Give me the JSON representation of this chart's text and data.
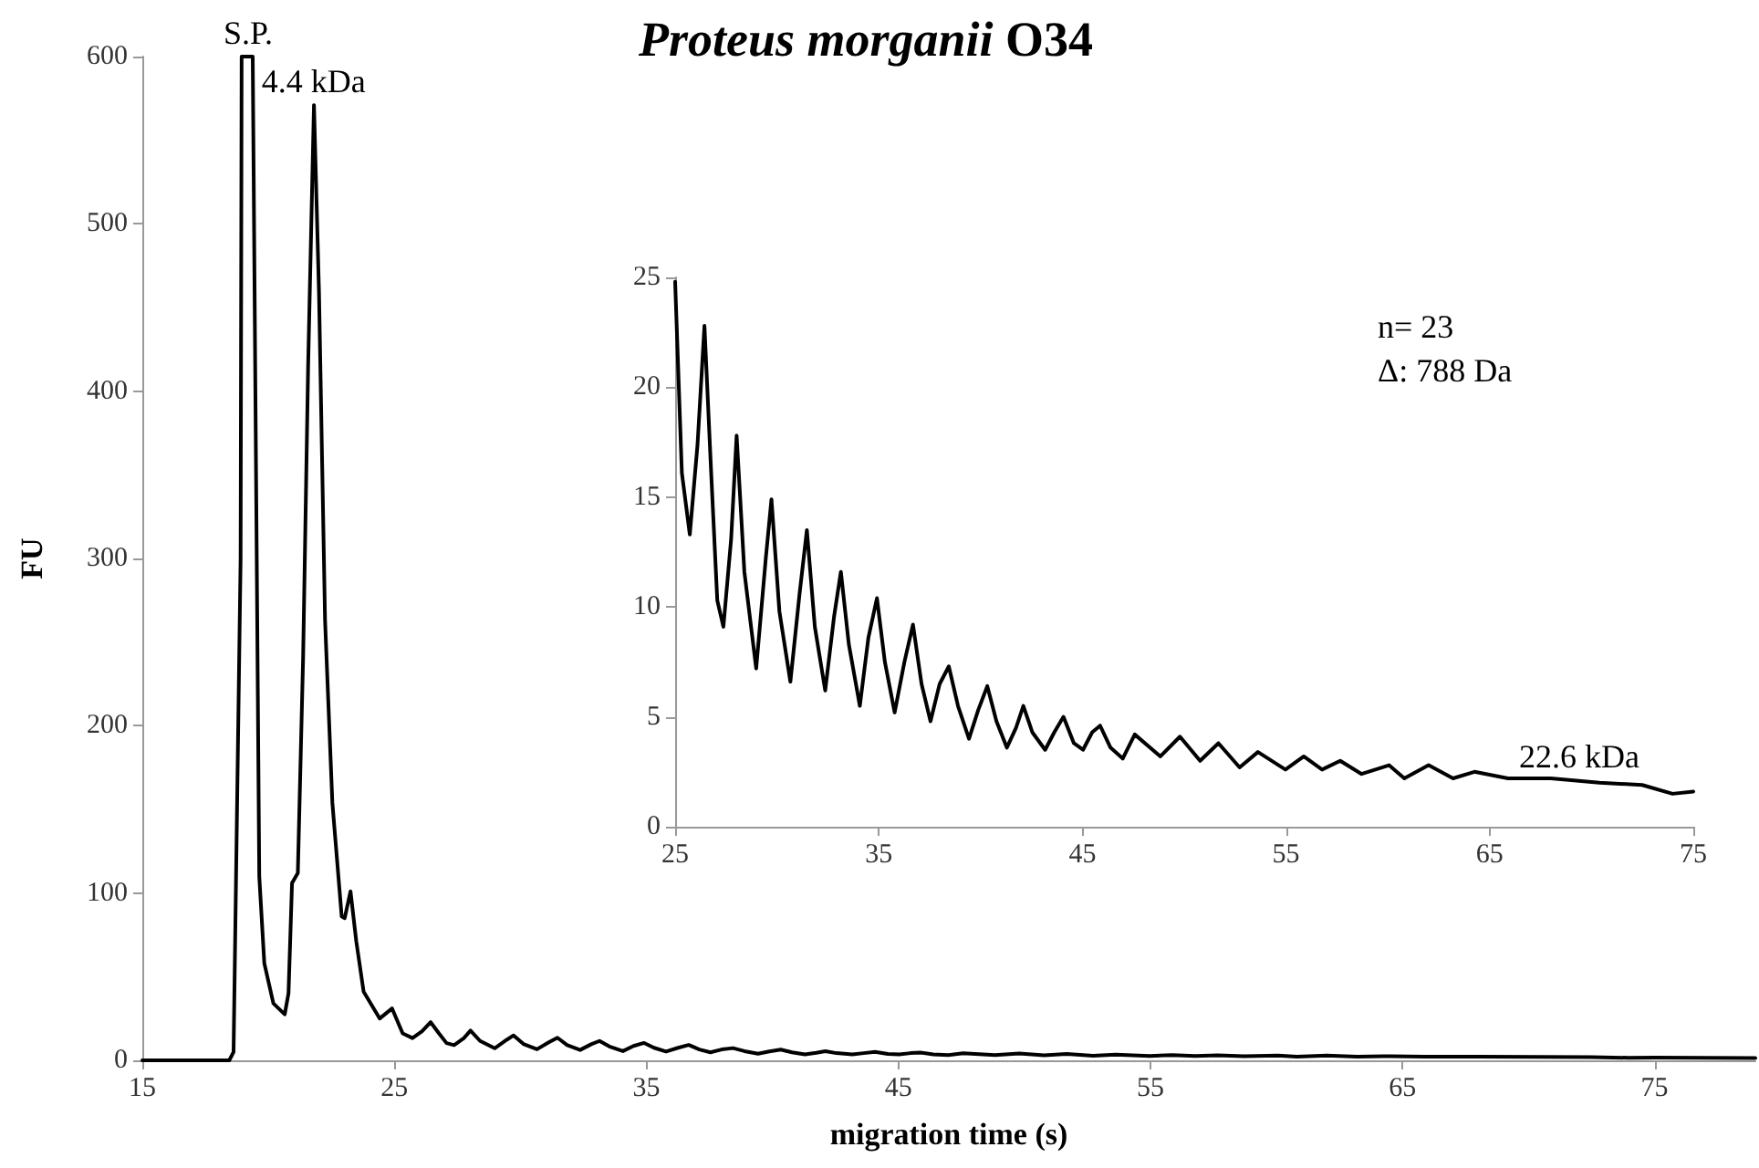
{
  "chart_data": [
    {
      "type": "line",
      "title": "Proteus morganii O34",
      "xlabel": "migration time (s)",
      "ylabel": "FU",
      "xlim": [
        15,
        79
      ],
      "ylim": [
        0,
        600
      ],
      "xticks": [
        15,
        25,
        35,
        45,
        55,
        65,
        75
      ],
      "yticks": [
        0,
        100,
        200,
        300,
        400,
        500,
        600
      ],
      "marker": "none",
      "annotations": [
        {
          "text": "S.P.",
          "x": 19.2,
          "y": 600
        },
        {
          "text": "4.4 kDa",
          "x": 21.8,
          "y": 571
        }
      ],
      "series": [
        {
          "color": "#000000",
          "x": [
            15,
            18.45,
            18.62,
            18.9,
            18.94,
            19.38,
            19.64,
            19.84,
            20.2,
            20.65,
            20.8,
            20.94,
            21.17,
            21.38,
            21.58,
            21.81,
            22.01,
            22.25,
            22.54,
            22.91,
            23.03,
            23.26,
            23.49,
            23.78,
            24.42,
            24.91,
            25.33,
            25.72,
            26.1,
            26.44,
            26.77,
            27.07,
            27.37,
            27.75,
            28.02,
            28.4,
            28.98,
            29.46,
            29.73,
            30.12,
            30.66,
            31.11,
            31.47,
            31.86,
            32.37,
            32.81,
            33.14,
            33.53,
            34.07,
            34.49,
            34.91,
            35.3,
            35.78,
            36.26,
            36.68,
            37.1,
            37.54,
            37.99,
            38.44,
            38.89,
            39.43,
            39.88,
            40.33,
            40.78,
            41.29,
            41.74,
            42.1,
            42.54,
            43.17,
            43.62,
            44.07,
            44.58,
            45.03,
            45.48,
            45.87,
            46.38,
            46.98,
            47.57,
            48.83,
            49.79,
            50.78,
            51.68,
            52.72,
            53.62,
            54.97,
            55.87,
            56.77,
            57.66,
            58.71,
            60.06,
            60.81,
            62.0,
            63.2,
            64.25,
            65.9,
            68.0,
            70.39,
            72.49,
            73.98,
            75,
            77,
            79
          ],
          "values": [
            0,
            0,
            5,
            300,
            600,
            600,
            110,
            58,
            34,
            27.5,
            40,
            106,
            112,
            241,
            416,
            571,
            459,
            263,
            154,
            86,
            85,
            101,
            71,
            41,
            25,
            31,
            16.1,
            13.3,
            17.4,
            22.8,
            16.1,
            10.3,
            9.1,
            13.1,
            17.8,
            11.6,
            7.2,
            12.3,
            14.9,
            9.8,
            6.6,
            10.6,
            13.5,
            9.1,
            6.2,
            9.6,
            11.6,
            8.3,
            5.5,
            8.6,
            10.4,
            7.5,
            5.2,
            7.5,
            9.2,
            6.5,
            4.8,
            6.5,
            7.3,
            5.5,
            4.0,
            5.3,
            6.4,
            4.8,
            3.6,
            4.5,
            5.5,
            4.3,
            3.5,
            4.3,
            5.0,
            3.8,
            3.5,
            4.3,
            4.6,
            3.6,
            3.1,
            4.2,
            3.2,
            4.1,
            3.0,
            3.8,
            2.7,
            3.4,
            2.6,
            3.2,
            2.6,
            3.0,
            2.4,
            2.8,
            2.2,
            2.8,
            2.2,
            2.5,
            2.2,
            2.2,
            2.0,
            1.9,
            1.5,
            1.6,
            1.5,
            1.4
          ]
        }
      ]
    },
    {
      "type": "line",
      "xlim": [
        25,
        75
      ],
      "ylim": [
        0,
        25
      ],
      "xticks": [
        25,
        35,
        45,
        55,
        65,
        75
      ],
      "yticks": [
        0,
        5,
        10,
        15,
        20,
        25
      ],
      "marker": "none",
      "annotations": [
        "n= 23",
        "Δ: 788 Da",
        {
          "text": "22.6 kDa",
          "x": 69.4,
          "y": 2.1
        }
      ],
      "series": [
        {
          "color": "#000000",
          "x": [
            25,
            25.33,
            25.72,
            26.1,
            26.44,
            26.77,
            27.07,
            27.37,
            27.75,
            28.02,
            28.4,
            28.98,
            29.46,
            29.73,
            30.12,
            30.66,
            31.11,
            31.47,
            31.86,
            32.37,
            32.81,
            33.14,
            33.53,
            34.07,
            34.49,
            34.91,
            35.3,
            35.78,
            36.26,
            36.68,
            37.1,
            37.54,
            37.99,
            38.44,
            38.89,
            39.43,
            39.88,
            40.33,
            40.78,
            41.29,
            41.74,
            42.1,
            42.54,
            43.17,
            43.62,
            44.07,
            44.58,
            45.03,
            45.48,
            45.87,
            46.38,
            46.98,
            47.57,
            48.83,
            49.79,
            50.78,
            51.68,
            52.72,
            53.62,
            54.97,
            55.87,
            56.77,
            57.66,
            58.71,
            60.06,
            60.81,
            62.0,
            63.2,
            64.25,
            65.9,
            68.0,
            70.39,
            72.49,
            73.98,
            75
          ],
          "values": [
            24.8,
            16.1,
            13.3,
            17.4,
            22.8,
            16.1,
            10.3,
            9.1,
            13.1,
            17.8,
            11.6,
            7.2,
            12.3,
            14.9,
            9.8,
            6.6,
            10.6,
            13.5,
            9.1,
            6.2,
            9.6,
            11.6,
            8.3,
            5.5,
            8.6,
            10.4,
            7.5,
            5.2,
            7.5,
            9.2,
            6.5,
            4.8,
            6.5,
            7.3,
            5.5,
            4.0,
            5.3,
            6.4,
            4.8,
            3.6,
            4.5,
            5.5,
            4.3,
            3.5,
            4.3,
            5.0,
            3.8,
            3.5,
            4.3,
            4.6,
            3.6,
            3.1,
            4.2,
            3.2,
            4.1,
            3.0,
            3.8,
            2.7,
            3.4,
            2.6,
            3.2,
            2.6,
            3.0,
            2.4,
            2.8,
            2.2,
            2.8,
            2.2,
            2.5,
            2.2,
            2.2,
            2.0,
            1.9,
            1.5,
            1.6
          ]
        }
      ]
    }
  ]
}
